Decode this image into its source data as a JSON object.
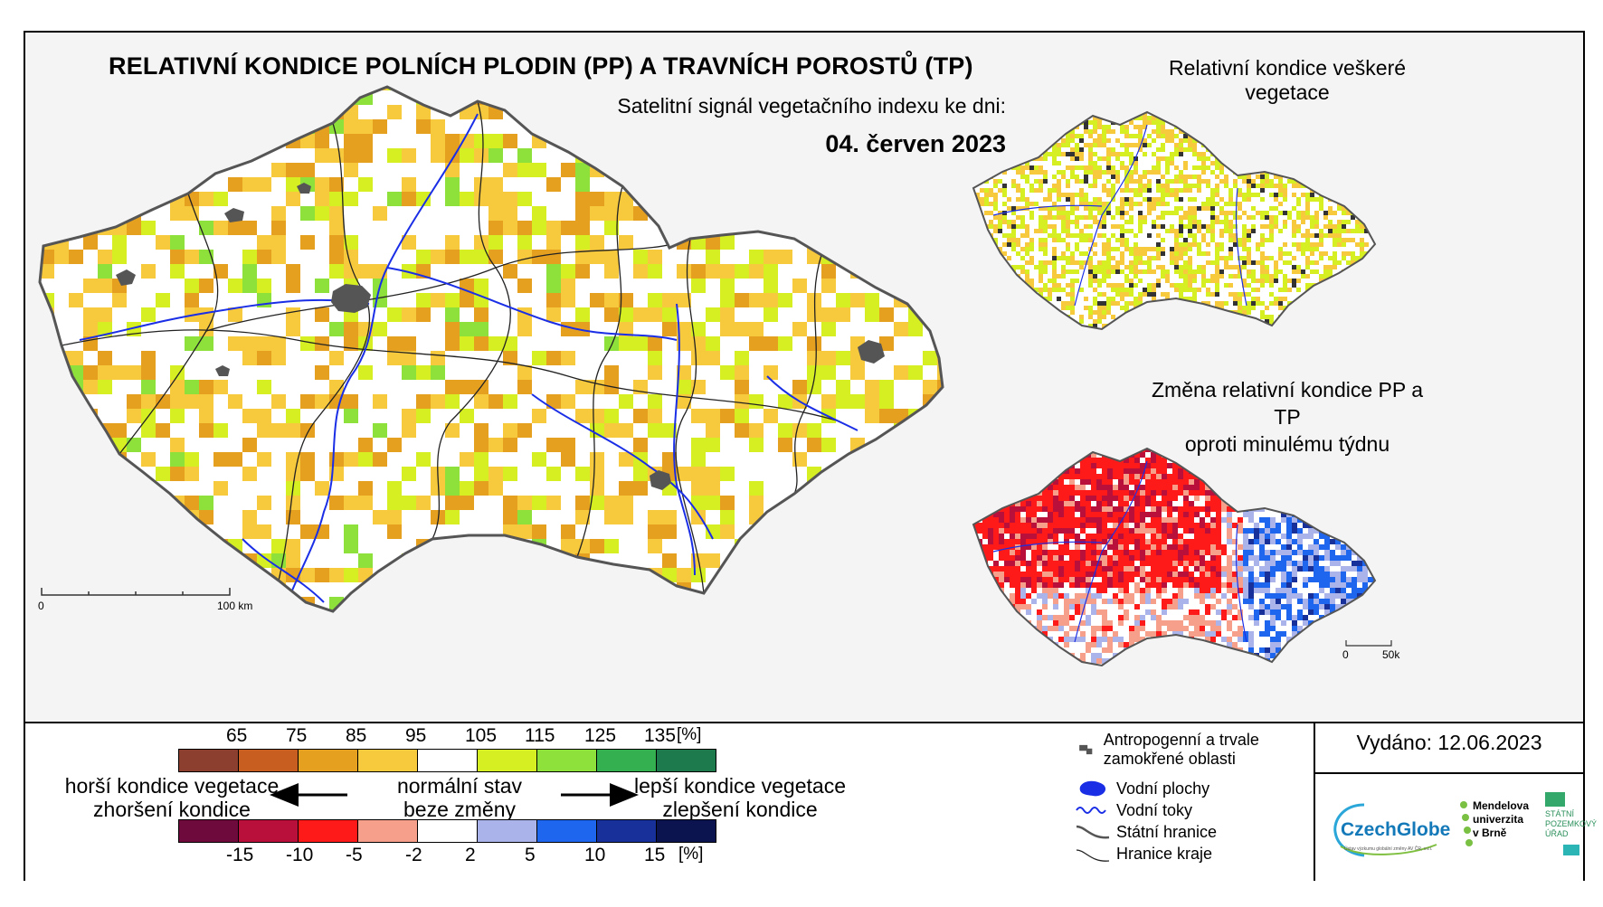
{
  "title": "RELATIVNÍ KONDICE POLNÍCH PLODIN (PP) A TRAVNÍCH POROSTŮ (TP)",
  "subtitle": "Satelitní signál vegetačního indexu ke dni:",
  "date": "04. červen 2023",
  "inset_vegetation_title": "Relativní kondice veškeré vegetace",
  "inset_change_title_line1": "Změna relativní kondice PP a TP",
  "inset_change_title_line2": "oproti minulému týdnu",
  "scale_main": {
    "zero": "0",
    "end": "100 km"
  },
  "scale_inset": {
    "zero": "0",
    "end": "50km"
  },
  "condition_legend": {
    "ticks": [
      "65",
      "75",
      "85",
      "95",
      "105",
      "115",
      "125",
      "135"
    ],
    "unit": "[%]",
    "colors": [
      "#8c3f2e",
      "#c85f20",
      "#e6a020",
      "#f7c93c",
      "#ffffff",
      "#d6ef22",
      "#8ee03a",
      "#34b050",
      "#1d7a4c"
    ]
  },
  "change_legend": {
    "ticks": [
      "-15",
      "-10",
      "-5",
      "-2",
      "2",
      "5",
      "10",
      "15"
    ],
    "unit": "[%]",
    "colors": [
      "#6e0a3c",
      "#b8103a",
      "#ff1a1a",
      "#f6a08c",
      "#ffffff",
      "#aab4ea",
      "#1f66ee",
      "#17309a",
      "#0c1450"
    ]
  },
  "left_text_line1": "horší kondice vegetace",
  "left_text_line2": "zhoršení kondice",
  "center_text_line1": "normální stav",
  "center_text_line2": "beze změny",
  "right_text_line1": "lepší kondice vegetace",
  "right_text_line2": "zlepšení kondice",
  "map_legend": {
    "anthropogenic": "Antropogenní a trvale zamokřené oblasti",
    "water_bodies": "Vodní plochy",
    "water_streams": "Vodní toky",
    "state_border": "Státní hranice",
    "region_border": "Hranice kraje"
  },
  "issued": "Vydáno: 12.06.2023",
  "logos": {
    "czechglobe": "CzechGlobe",
    "czechglobe_sub": "Ústav výzkumu globální změny AV ČR, v.v.i.",
    "mendel_line1": "Mendelova",
    "mendel_line2": "univerzita",
    "mendel_line3": "v Brně",
    "spu_line1": "STÁTNÍ",
    "spu_line2": "POZEMKOVÝ",
    "spu_line3": "ÚŘAD"
  }
}
